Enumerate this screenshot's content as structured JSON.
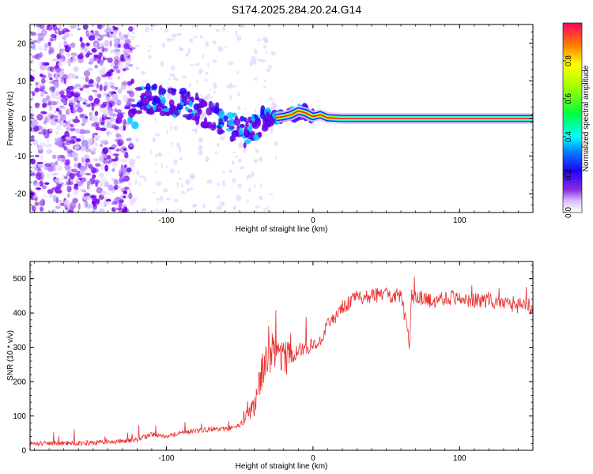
{
  "title": "S174.2025.284.20.24.G14",
  "colors": {
    "snr_line": "#e8302f",
    "ridge": "#ff1a1a",
    "speckle": "#7a00ff"
  },
  "chart_data": [
    {
      "type": "heatmap",
      "name": "spectrogram",
      "xlabel": "Height of straight line (km)",
      "ylabel": "Frequency (Hz)",
      "xlim": [
        -193,
        150
      ],
      "ylim": [
        -25,
        25
      ],
      "xticks": [
        -100,
        0,
        100
      ],
      "yticks": [
        -20,
        -10,
        0,
        10,
        20
      ],
      "ridge": {
        "x": [
          -120,
          -105,
          -90,
          -80,
          -70,
          -60,
          -50,
          -45,
          -40,
          -30,
          -20,
          -15,
          -10,
          -5,
          0,
          5,
          10,
          20,
          50,
          100,
          150
        ],
        "y": [
          5,
          5,
          4,
          3,
          1,
          -1,
          -3,
          -4,
          -2,
          0,
          0.5,
          1,
          2,
          1.5,
          0.5,
          1,
          0.2,
          0,
          0,
          0,
          0
        ]
      },
      "colorbar": {
        "label": "Normalized spectral amplitude",
        "ticks": [
          0.0,
          0.2,
          0.4,
          0.6,
          0.8
        ],
        "range": [
          0,
          1
        ]
      }
    },
    {
      "type": "line",
      "name": "snr",
      "xlabel": "Height of straight line (km)",
      "ylabel": "SNR (10 * v/v)",
      "xlim": [
        -193,
        150
      ],
      "ylim": [
        0,
        550
      ],
      "xticks": [
        -100,
        0,
        100
      ],
      "yticks": [
        0,
        100,
        200,
        300,
        400,
        500
      ],
      "series": [
        {
          "name": "SNR envelope",
          "x": [
            -193,
            -150,
            -130,
            -120,
            -110,
            -100,
            -90,
            -80,
            -70,
            -60,
            -50,
            -45,
            -40,
            -35,
            -30,
            -25,
            -20,
            -15,
            -10,
            -5,
            0,
            5,
            10,
            15,
            20,
            30,
            40,
            50,
            60,
            66,
            67,
            68,
            70,
            80,
            90,
            100,
            110,
            120,
            130,
            140,
            150
          ],
          "y": [
            18,
            20,
            25,
            30,
            45,
            40,
            50,
            55,
            60,
            60,
            70,
            100,
            120,
            220,
            260,
            280,
            260,
            270,
            285,
            295,
            300,
            320,
            360,
            380,
            410,
            440,
            445,
            450,
            445,
            300,
            445,
            440,
            445,
            430,
            440,
            440,
            430,
            435,
            420,
            415,
            410
          ]
        }
      ]
    }
  ]
}
